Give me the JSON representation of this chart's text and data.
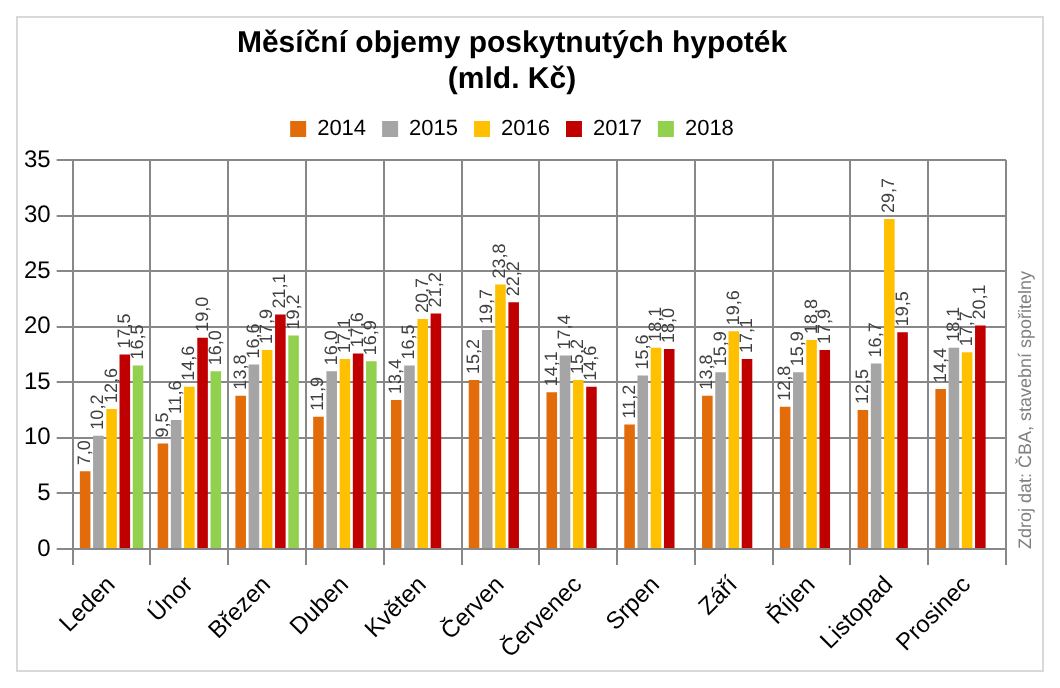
{
  "chart_data": {
    "type": "bar",
    "title": "Měsíční objemy poskytnutých hypoték\n(mld. Kč)",
    "categories": [
      "Leden",
      "Únor",
      "Březen",
      "Duben",
      "Květen",
      "Červen",
      "Červenec",
      "Srpen",
      "Září",
      "Říjen",
      "Listopad",
      "Prosinec"
    ],
    "series": [
      {
        "name": "2014",
        "color": "#e36c0a",
        "values": [
          7.0,
          9.5,
          13.8,
          11.9,
          13.4,
          15.2,
          14.1,
          11.2,
          13.8,
          12.8,
          12.5,
          14.4
        ],
        "value_labels": [
          "7,0",
          "9,5",
          "13,8",
          "11,9",
          "13,4",
          "15,2",
          "14,1",
          "11,2",
          "13,8",
          "12,8",
          "12,5",
          "14,4"
        ]
      },
      {
        "name": "2015",
        "color": "#a5a5a5",
        "values": [
          10.2,
          11.6,
          16.6,
          16.0,
          16.5,
          19.7,
          17.4,
          15.6,
          15.9,
          15.9,
          16.7,
          18.1
        ],
        "value_labels": [
          "10,2",
          "11,6",
          "16,6",
          "16,0",
          "16,5",
          "19,7",
          "17,4",
          "15,6",
          "15,9",
          "15,9",
          "16,7",
          "18,1"
        ]
      },
      {
        "name": "2016",
        "color": "#ffc000",
        "values": [
          12.6,
          14.6,
          17.9,
          17.1,
          20.7,
          23.8,
          15.2,
          18.1,
          19.6,
          18.8,
          29.7,
          17.7
        ],
        "value_labels": [
          "12,6",
          "14,6",
          "17,9",
          "17,1",
          "20,7",
          "23,8",
          "15,2",
          "18,1",
          "19,6",
          "18,8",
          "29,7",
          "17,7"
        ]
      },
      {
        "name": "2017",
        "color": "#c00000",
        "values": [
          17.5,
          19.0,
          21.1,
          17.6,
          21.2,
          22.2,
          14.6,
          18.0,
          17.1,
          17.9,
          19.5,
          20.1
        ],
        "value_labels": [
          "17,5",
          "19,0",
          "21,1",
          "17,6",
          "21,2",
          "22,2",
          "14,6",
          "18,0",
          "17,1",
          "17,9",
          "19,5",
          "20,1"
        ]
      },
      {
        "name": "2018",
        "color": "#92d050",
        "values": [
          16.5,
          16.0,
          19.2,
          16.9,
          null,
          null,
          null,
          null,
          null,
          null,
          null,
          null
        ],
        "value_labels": [
          "16,5",
          "16,0",
          "19,2",
          "16,9",
          null,
          null,
          null,
          null,
          null,
          null,
          null,
          null
        ]
      }
    ],
    "ylim": [
      0,
      35
    ],
    "yticks": [
      0,
      5,
      10,
      15,
      20,
      25,
      30,
      35
    ],
    "grid": true,
    "legend": "top",
    "annotations": [
      "Zdroj dat: ČBA, stavební spořitelny"
    ]
  }
}
